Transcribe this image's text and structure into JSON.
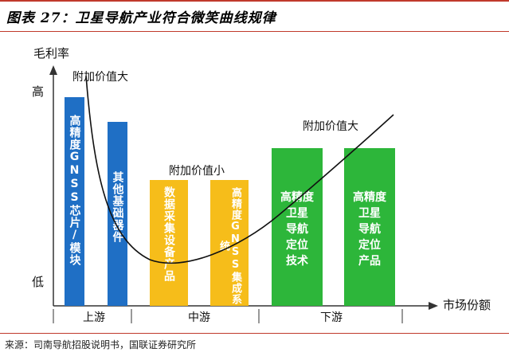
{
  "title": "图表 27：卫星导航产业符合微笑曲线规律",
  "y_axis": {
    "label": "毛利率",
    "high": "高",
    "low": "低"
  },
  "x_axis": {
    "label": "市场份额",
    "segments": [
      "上游",
      "中游",
      "下游"
    ]
  },
  "annotations": {
    "left": "附加价值大",
    "middle": "附加价值小",
    "right": "附加价值大"
  },
  "bars": [
    {
      "text": "高精度GNSS芯片/模块",
      "color": "#1f6fc5"
    },
    {
      "text": "其他基础器件",
      "color": "#1f6fc5"
    },
    {
      "text": "数据采集设备产品",
      "color": "#f6bd1a"
    },
    {
      "text": "高精度GNSS集成系统",
      "color": "#f6bd1a"
    },
    {
      "text": "高精度\n卫星\n导航\n定位\n技术",
      "color": "#2db63a"
    },
    {
      "text": "高精度\n卫星\n导航\n定位\n产品",
      "color": "#2db63a"
    }
  ],
  "source": "来源：司南导航招股说明书，国联证券研究所",
  "colors": {
    "axis": "#333333",
    "curve": "#111111",
    "title_rule": "#c0392b"
  }
}
